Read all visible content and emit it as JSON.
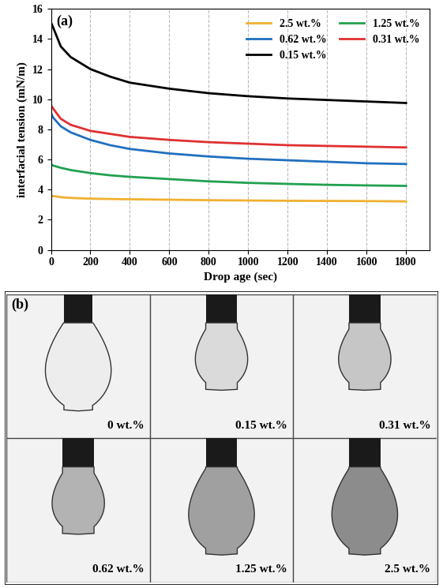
{
  "chart_data": {
    "type": "line",
    "title": "(a)",
    "x_label": "Drop age (sec)",
    "y_label": "interfacial tension (mN/m)",
    "x": [
      0,
      10,
      50,
      100,
      200,
      300,
      400,
      600,
      800,
      1000,
      1200,
      1400,
      1600,
      1800
    ],
    "series": [
      {
        "name": "2.5 wt.%",
        "color": "#f0b030",
        "values": [
          3.6,
          3.58,
          3.5,
          3.45,
          3.4,
          3.38,
          3.36,
          3.33,
          3.3,
          3.28,
          3.26,
          3.25,
          3.24,
          3.22
        ]
      },
      {
        "name": "1.25 wt.%",
        "color": "#22a050",
        "values": [
          5.7,
          5.6,
          5.45,
          5.3,
          5.1,
          4.95,
          4.85,
          4.7,
          4.55,
          4.45,
          4.38,
          4.32,
          4.28,
          4.25
        ]
      },
      {
        "name": "0.62 wt.%",
        "color": "#2070c0",
        "values": [
          9.1,
          8.8,
          8.2,
          7.8,
          7.3,
          6.95,
          6.7,
          6.4,
          6.2,
          6.05,
          5.95,
          5.85,
          5.75,
          5.7
        ]
      },
      {
        "name": "0.31 wt.%",
        "color": "#e03030",
        "values": [
          9.6,
          9.4,
          8.7,
          8.3,
          7.9,
          7.7,
          7.5,
          7.3,
          7.15,
          7.05,
          6.95,
          6.9,
          6.85,
          6.8
        ]
      },
      {
        "name": "0.15 wt.%",
        "color": "#000000",
        "values": [
          15.1,
          14.8,
          13.5,
          12.8,
          12.0,
          11.5,
          11.1,
          10.7,
          10.4,
          10.2,
          10.05,
          9.95,
          9.85,
          9.75
        ]
      }
    ],
    "xlim": [
      0,
      1920
    ],
    "xticks": [
      0,
      200,
      400,
      600,
      800,
      1000,
      1200,
      1400,
      1600,
      1800
    ],
    "ylim": [
      0,
      16
    ],
    "yticks": [
      0,
      2,
      4,
      6,
      8,
      10,
      12,
      14,
      16
    ],
    "grid": true,
    "legend": "upper right"
  },
  "panel_b": {
    "label": "(b)",
    "images": [
      "0 wt.%",
      "0.15 wt.%",
      "0.31 wt.%",
      "0.62 wt.%",
      "1.25 wt.%",
      "2.5 wt.%"
    ]
  }
}
